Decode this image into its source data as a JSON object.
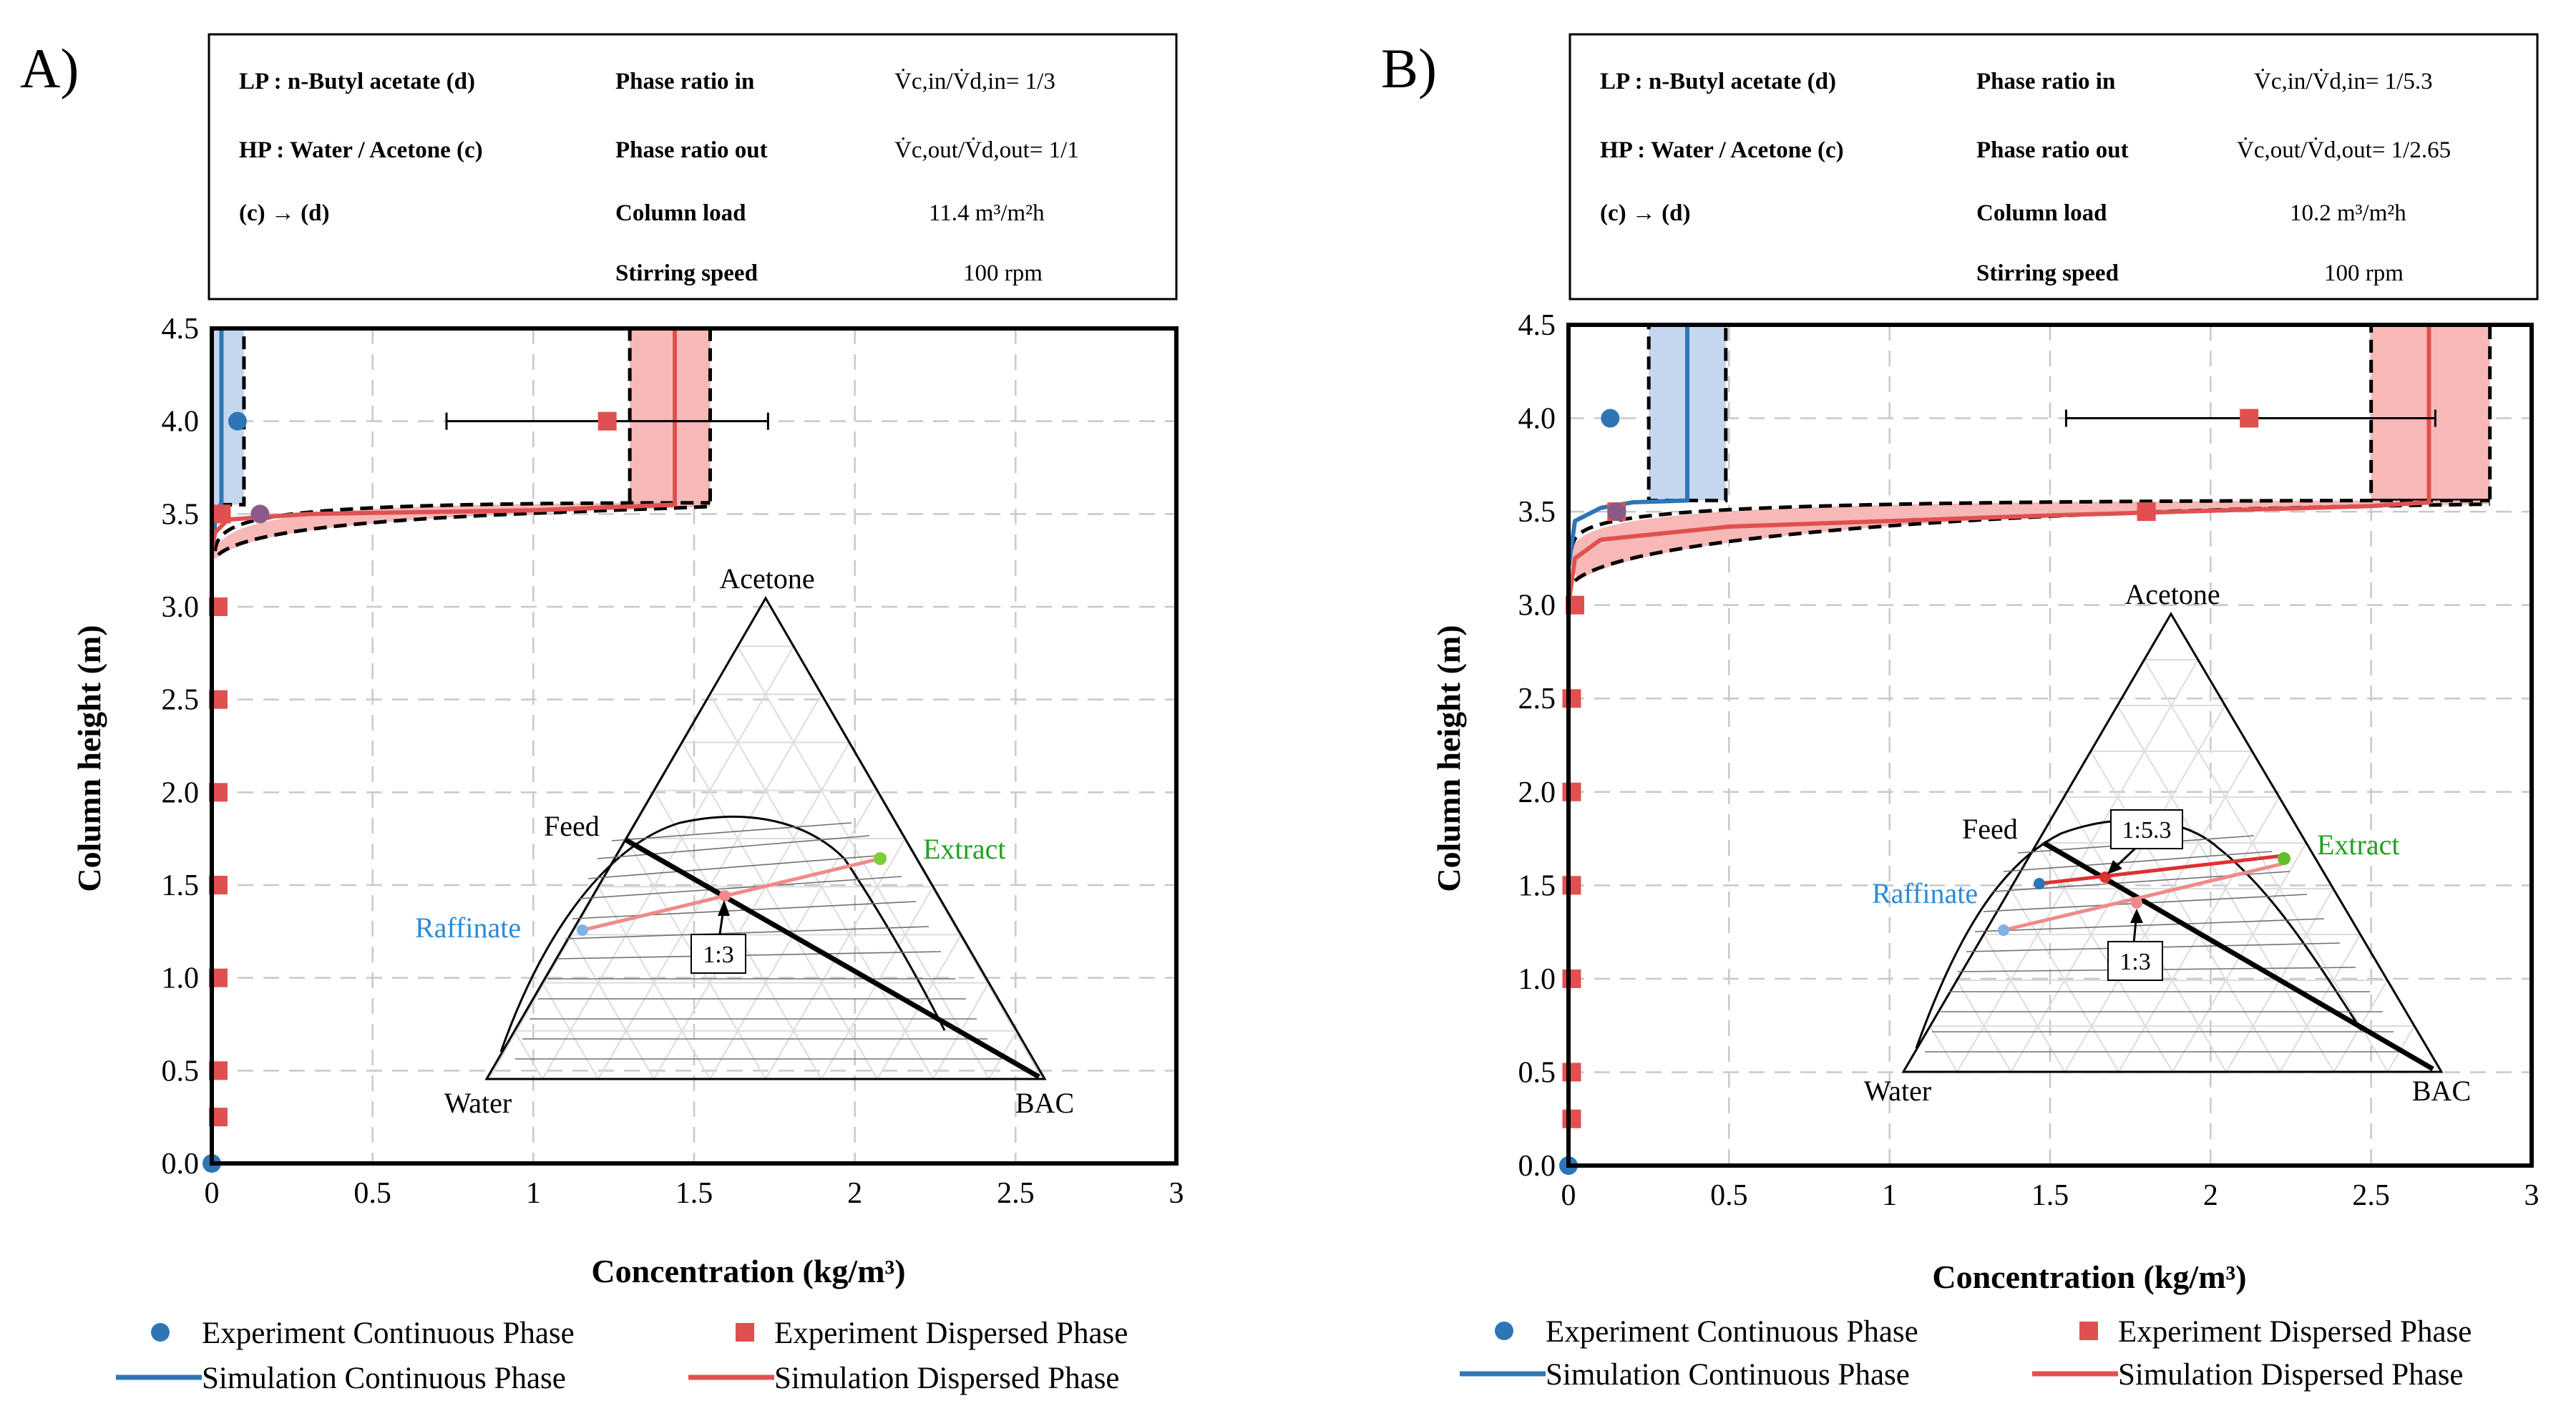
{
  "chart_data": [
    {
      "type": "scatter",
      "panel_label": "A)",
      "xlabel": "Concentration (kg/m³)",
      "ylabel": "Column height (m)",
      "xlim": [
        0,
        3
      ],
      "ylim": [
        0,
        4.5
      ],
      "x_ticks": [
        "0",
        "0.5",
        "1",
        "1.5",
        "2",
        "2.5",
        "3"
      ],
      "y_ticks": [
        "0.0",
        "0.5",
        "1.0",
        "1.5",
        "2.0",
        "2.5",
        "3.0",
        "3.5",
        "4.0",
        "4.5"
      ],
      "info": {
        "lp": "LP : n-Butyl acetate (d)",
        "hp": "HP : Water / Acetone (c)",
        "dir": "(c) → (d)",
        "ratio_in_label": "Phase ratio in",
        "ratio_in_value": "V̇c,in/V̇d,in= 1/3",
        "ratio_out_label": "Phase ratio out",
        "ratio_out_value": "V̇c,out/V̇d,out= 1/1",
        "load_label": "Column load",
        "load_value": "11.4 m³/m²h",
        "speed_label": "Stirring speed",
        "speed_value": "100 rpm"
      },
      "series": [
        {
          "name": "Experiment Continuous Phase",
          "kind": "points",
          "color": "#2e75b6",
          "x": [
            0.0,
            0.08,
            0.15
          ],
          "y": [
            0.0,
            4.0,
            3.5
          ]
        },
        {
          "name": "Experiment Dispersed Phase",
          "kind": "points",
          "color": "#e05050",
          "x": [
            0.02,
            0.02,
            0.02,
            0.02,
            0.02,
            0.02,
            0.02,
            0.03,
            0.03,
            1.23
          ],
          "y": [
            0.25,
            0.5,
            1.0,
            1.5,
            2.0,
            2.5,
            3.0,
            3.5,
            3.5,
            4.0
          ],
          "xerr_point": {
            "x": 1.23,
            "y": 4.0,
            "low": 0.73,
            "high": 1.73
          }
        },
        {
          "name": "Simulation Continuous Phase",
          "kind": "line",
          "color": "#2e75b6",
          "x": [
            0.0,
            0.0,
            0.01,
            0.02,
            0.03,
            0.03
          ],
          "y": [
            0.0,
            3.3,
            3.45,
            3.52,
            3.56,
            4.5
          ],
          "band_low": 0.0,
          "band_high": 0.1
        },
        {
          "name": "Simulation Dispersed Phase",
          "kind": "line",
          "color": "#e05050",
          "x": [
            0.0,
            0.0,
            0.01,
            0.05,
            0.3,
            1.0,
            1.44,
            1.44
          ],
          "y": [
            0.0,
            3.3,
            3.4,
            3.47,
            3.5,
            3.52,
            3.55,
            4.5
          ],
          "band_low": 1.3,
          "band_high": 1.55
        }
      ],
      "ternary": {
        "top": "Acetone",
        "left": "Water",
        "right": "BAC",
        "feed": "Feed",
        "raffinate": "Raffinate",
        "extract": "Extract",
        "ratios": [
          "1:3"
        ]
      }
    },
    {
      "type": "scatter",
      "panel_label": "B)",
      "xlabel": "Concentration (kg/m³)",
      "ylabel": "Column height (m)",
      "xlim": [
        0,
        3
      ],
      "ylim": [
        0,
        4.5
      ],
      "x_ticks": [
        "0",
        "0.5",
        "1",
        "1.5",
        "2",
        "2.5",
        "3"
      ],
      "y_ticks": [
        "0.0",
        "0.5",
        "1.0",
        "1.5",
        "2.0",
        "2.5",
        "3.0",
        "3.5",
        "4.0",
        "4.5"
      ],
      "info": {
        "lp": "LP : n-Butyl acetate (d)",
        "hp": "HP : Water / Acetone (c)",
        "dir": "(c) → (d)",
        "ratio_in_label": "Phase ratio in",
        "ratio_in_value": "V̇c,in/V̇d,in= 1/5.3",
        "ratio_out_label": "Phase ratio out",
        "ratio_out_value": "V̇c,out/V̇d,out= 1/2.65",
        "load_label": "Column load",
        "load_value": "10.2 m³/m²h",
        "speed_label": "Stirring speed",
        "speed_value": "100 rpm"
      },
      "series": [
        {
          "name": "Experiment Continuous Phase",
          "kind": "points",
          "color": "#2e75b6",
          "x": [
            0.0,
            0.13,
            0.15
          ],
          "y": [
            0.0,
            4.0,
            3.5
          ]
        },
        {
          "name": "Experiment Dispersed Phase",
          "kind": "points",
          "color": "#e05050",
          "x": [
            0.01,
            0.01,
            0.01,
            0.01,
            0.01,
            0.01,
            0.02,
            0.15,
            1.8,
            2.12
          ],
          "y": [
            0.25,
            0.5,
            1.0,
            1.5,
            2.0,
            2.5,
            3.0,
            3.5,
            3.5,
            4.0
          ],
          "xerr_point": {
            "x": 2.12,
            "y": 4.0,
            "low": 1.55,
            "high": 2.7
          }
        },
        {
          "name": "Simulation Continuous Phase",
          "kind": "line",
          "color": "#2e75b6",
          "x": [
            0.0,
            0.0,
            0.02,
            0.1,
            0.2,
            0.37,
            0.37
          ],
          "y": [
            0.0,
            3.2,
            3.45,
            3.52,
            3.55,
            3.56,
            4.5
          ],
          "band_low": 0.25,
          "band_high": 0.49
        },
        {
          "name": "Simulation Dispersed Phase",
          "kind": "line",
          "color": "#e05050",
          "x": [
            0.0,
            0.0,
            0.02,
            0.1,
            0.5,
            1.5,
            2.5,
            2.68,
            2.68
          ],
          "y": [
            0.0,
            3.0,
            3.25,
            3.35,
            3.42,
            3.48,
            3.53,
            3.55,
            4.5
          ],
          "band_low": 2.5,
          "band_high": 2.87
        }
      ],
      "ternary": {
        "top": "Acetone",
        "left": "Water",
        "right": "BAC",
        "feed": "Feed",
        "raffinate": "Raffinate",
        "extract": "Extract",
        "ratios": [
          "1:5.3",
          "1:3"
        ]
      }
    }
  ],
  "legend": {
    "exp_cont": "Experiment Continuous Phase",
    "exp_disp": "Experiment Dispersed Phase",
    "sim_cont": "Simulation Continuous Phase",
    "sim_disp": "Simulation Dispersed Phase"
  },
  "colors": {
    "blue": "#2e75b6",
    "red": "#e05050",
    "blue_band": "#c5d6ef",
    "red_band": "#f7b8b8",
    "green": "#5fbf2a",
    "raffinate_text": "#2e8ad8",
    "extract_text": "#22a022"
  }
}
